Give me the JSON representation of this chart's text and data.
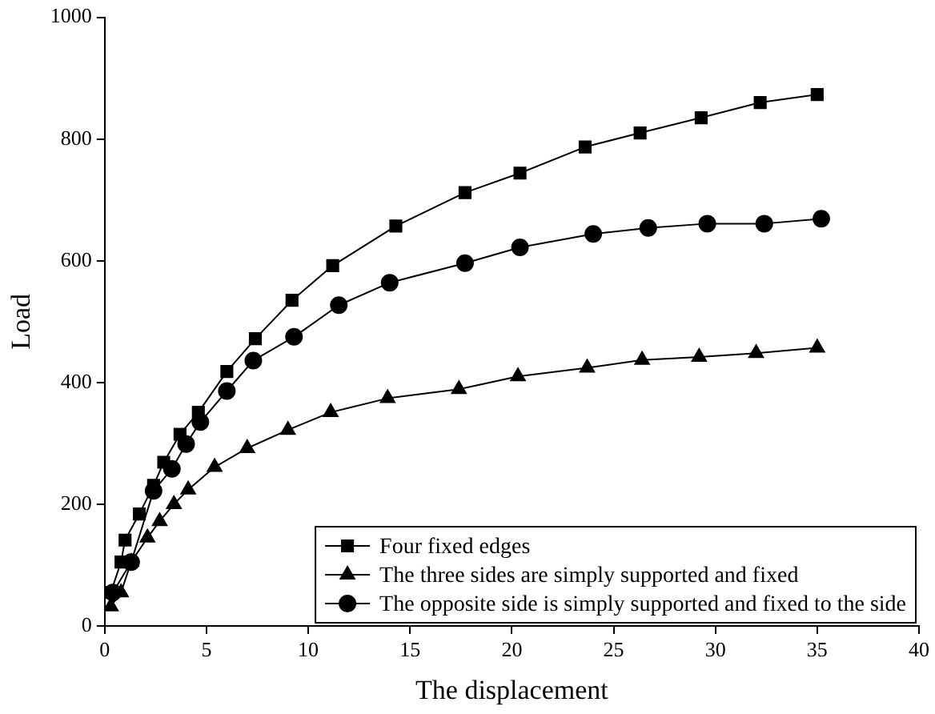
{
  "chart_data": {
    "type": "line",
    "xlabel": "The displacement",
    "ylabel": "Load",
    "xlim": [
      0,
      40
    ],
    "xticks": [
      0,
      5,
      10,
      15,
      20,
      25,
      30,
      35,
      40
    ],
    "ylim": [
      0,
      1000
    ],
    "yticks": [
      0,
      200,
      400,
      600,
      800,
      1000
    ],
    "grid": false,
    "legend": "bottom right",
    "line_style": "solid",
    "series": [
      {
        "name": "Four fixed edges",
        "color": "#000000",
        "marker": "square",
        "x": [
          0.3,
          0.8,
          1.0,
          1.7,
          2.4,
          2.9,
          3.7,
          4.6,
          6.0,
          7.4,
          9.2,
          11.2,
          14.3,
          17.7,
          20.4,
          23.6,
          26.3,
          29.3,
          32.2,
          35.0
        ],
        "values": [
          55,
          105,
          141,
          184,
          231,
          269,
          315,
          351,
          418,
          472,
          535,
          592,
          657,
          712,
          744,
          787,
          810,
          835,
          860,
          873
        ]
      },
      {
        "name": "The three sides are simply supported and fixed",
        "color": "#000000",
        "marker": "triangle",
        "x": [
          0.3,
          0.8,
          1.3,
          2.1,
          2.7,
          3.4,
          4.1,
          5.4,
          7.0,
          9.0,
          11.1,
          13.9,
          17.4,
          20.3,
          23.7,
          26.4,
          29.2,
          32.0,
          35.0
        ],
        "values": [
          32,
          55,
          105,
          145,
          172,
          200,
          224,
          261,
          292,
          322,
          351,
          374,
          389,
          410,
          424,
          437,
          442,
          448,
          457
        ]
      },
      {
        "name": "The opposite side is simply supported and fixed to the side",
        "color": "#000000",
        "marker": "circle",
        "x": [
          0.4,
          1.3,
          2.4,
          3.3,
          4.0,
          4.7,
          6.0,
          7.3,
          9.3,
          11.5,
          14.0,
          17.7,
          20.4,
          24.0,
          26.7,
          29.6,
          32.4,
          35.2
        ],
        "values": [
          55,
          105,
          222,
          258,
          299,
          335,
          386,
          436,
          475,
          527,
          564,
          596,
          622,
          644,
          654,
          661,
          661,
          669
        ]
      }
    ]
  }
}
